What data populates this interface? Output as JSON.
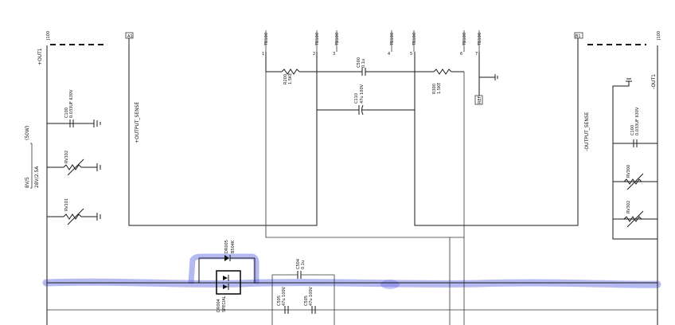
{
  "colors": {
    "wire": "#1a1a1a",
    "highlight": "#5b63e0",
    "paper": "#ffffff"
  },
  "connectors": {
    "left_pin": "J100",
    "right_pin": "J100",
    "tb_top": [
      "TB100",
      "TB100",
      "TB100",
      "TB100",
      "TB100",
      "TB100",
      "TB100"
    ],
    "tb_pins": [
      "1",
      "2",
      "3",
      "4",
      "5",
      "6",
      "7"
    ]
  },
  "nets": {
    "plus_out": "+OUT1",
    "minus_out": "-OUT1",
    "plus_sense": "+OUTPUT_SENSE",
    "minus_sense": "-OUTPUT_SENSE",
    "left_box": "A1",
    "right_box": "B1"
  },
  "spec": {
    "voltage": "8V/5",
    "power": "28V/2.5A",
    "watts": "(50W)"
  },
  "components": {
    "c_left": {
      "ref": "C100",
      "val": "0.033UF 630V"
    },
    "rv102": "RV102",
    "rv101": "RV101",
    "r_top_left": {
      "ref": "R200",
      "val": "1.5KE"
    },
    "c_top": {
      "ref": "C500",
      "val": "0.1u"
    },
    "c_mid": {
      "ref": "C110",
      "val": "47u 100V"
    },
    "r_top_right": {
      "ref": "R300",
      "val": "1.5KE"
    },
    "c_right": {
      "ref": "C100",
      "val": "0.033UF 630V"
    },
    "rv_right_1": "RV300",
    "rv_right_2": "RV302",
    "d_top": {
      "ref": "DR005",
      "val": "B504K"
    },
    "d_bottom": {
      "ref": "DR004",
      "val": "SPECIAL"
    },
    "c_diode": {
      "ref": "C504",
      "val": "0.1u"
    },
    "c_bot_1": {
      "ref": "C505",
      "val": "47u 100V"
    },
    "c_bot_2": {
      "ref": "C505",
      "val": "47u 100V"
    },
    "ref_box": "REF"
  }
}
